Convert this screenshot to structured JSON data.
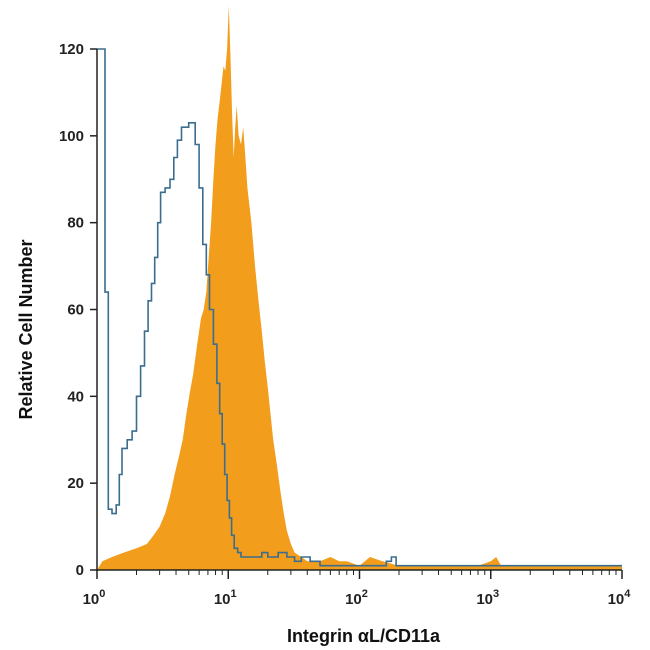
{
  "chart_data": {
    "type": "histogram",
    "xlabel": "Integrin αL/CD11a",
    "ylabel": "Relative Cell Number",
    "xscale": "log",
    "xlim": [
      1,
      10000
    ],
    "ylim": [
      0,
      120
    ],
    "x_ticks": [
      {
        "value": 1,
        "base": "10",
        "exp": "0"
      },
      {
        "value": 10,
        "base": "10",
        "exp": "1"
      },
      {
        "value": 100,
        "base": "10",
        "exp": "2"
      },
      {
        "value": 1000,
        "base": "10",
        "exp": "3"
      },
      {
        "value": 10000,
        "base": "10",
        "exp": "4"
      }
    ],
    "y_ticks": [
      0,
      20,
      40,
      60,
      80,
      100,
      120
    ],
    "grid": false,
    "series": [
      {
        "style": "outline",
        "color": "#3b6d8f",
        "points": [
          [
            1.0,
            120
          ],
          [
            1.14,
            120
          ],
          [
            1.15,
            64
          ],
          [
            1.2,
            64
          ],
          [
            1.22,
            14
          ],
          [
            1.28,
            14
          ],
          [
            1.3,
            13
          ],
          [
            1.4,
            15
          ],
          [
            1.48,
            22
          ],
          [
            1.55,
            28
          ],
          [
            1.7,
            30
          ],
          [
            1.85,
            32
          ],
          [
            2.0,
            40
          ],
          [
            2.15,
            47
          ],
          [
            2.3,
            55
          ],
          [
            2.45,
            62
          ],
          [
            2.6,
            66
          ],
          [
            2.75,
            72
          ],
          [
            2.9,
            80
          ],
          [
            3.05,
            87
          ],
          [
            3.3,
            88
          ],
          [
            3.6,
            90
          ],
          [
            3.85,
            95
          ],
          [
            4.1,
            99
          ],
          [
            4.4,
            102
          ],
          [
            4.7,
            102
          ],
          [
            5.0,
            103
          ],
          [
            5.3,
            103
          ],
          [
            5.6,
            98
          ],
          [
            6.0,
            88
          ],
          [
            6.4,
            75
          ],
          [
            6.8,
            68
          ],
          [
            7.2,
            60
          ],
          [
            7.7,
            52
          ],
          [
            8.2,
            43
          ],
          [
            8.6,
            36
          ],
          [
            9.0,
            29
          ],
          [
            9.4,
            22
          ],
          [
            9.8,
            16
          ],
          [
            10.2,
            12
          ],
          [
            10.6,
            8
          ],
          [
            11.1,
            5
          ],
          [
            11.8,
            4
          ],
          [
            12.5,
            3
          ],
          [
            14.0,
            3
          ],
          [
            16.0,
            3
          ],
          [
            18.0,
            4
          ],
          [
            20.0,
            3
          ],
          [
            24.0,
            4
          ],
          [
            28.0,
            3
          ],
          [
            32.0,
            2
          ],
          [
            36.0,
            3
          ],
          [
            42.0,
            2
          ],
          [
            50.0,
            1
          ],
          [
            60.0,
            1
          ],
          [
            80.0,
            1
          ],
          [
            100.0,
            1
          ],
          [
            130.0,
            1
          ],
          [
            160.0,
            2
          ],
          [
            175.0,
            3
          ],
          [
            190.0,
            1
          ],
          [
            250.0,
            1
          ],
          [
            500.0,
            1
          ],
          [
            1000.0,
            1
          ],
          [
            3000.0,
            1
          ],
          [
            10000.0,
            1
          ]
        ]
      },
      {
        "style": "filled",
        "color": "#f29d1b",
        "points": [
          [
            1.0,
            0
          ],
          [
            1.1,
            2
          ],
          [
            1.3,
            3
          ],
          [
            1.6,
            4
          ],
          [
            2.0,
            5
          ],
          [
            2.4,
            6
          ],
          [
            2.7,
            8
          ],
          [
            3.0,
            10
          ],
          [
            3.3,
            13
          ],
          [
            3.6,
            17
          ],
          [
            3.9,
            22
          ],
          [
            4.2,
            26
          ],
          [
            4.5,
            30
          ],
          [
            4.8,
            36
          ],
          [
            5.1,
            41
          ],
          [
            5.4,
            45
          ],
          [
            5.8,
            52
          ],
          [
            6.2,
            58
          ],
          [
            6.5,
            60
          ],
          [
            6.8,
            64
          ],
          [
            7.1,
            72
          ],
          [
            7.4,
            80
          ],
          [
            7.7,
            90
          ],
          [
            8.0,
            98
          ],
          [
            8.3,
            104
          ],
          [
            8.6,
            108
          ],
          [
            8.9,
            112
          ],
          [
            9.2,
            116
          ],
          [
            9.5,
            115
          ],
          [
            9.8,
            120
          ],
          [
            10.1,
            130
          ],
          [
            10.4,
            118
          ],
          [
            10.7,
            105
          ],
          [
            11.0,
            95
          ],
          [
            11.3,
            102
          ],
          [
            11.6,
            107
          ],
          [
            12.0,
            100
          ],
          [
            12.5,
            98
          ],
          [
            13.0,
            102
          ],
          [
            13.5,
            95
          ],
          [
            14.0,
            88
          ],
          [
            15.0,
            80
          ],
          [
            16.0,
            70
          ],
          [
            17.0,
            62
          ],
          [
            18.0,
            55
          ],
          [
            19.0,
            48
          ],
          [
            20.0,
            42
          ],
          [
            21.0,
            36
          ],
          [
            22.0,
            30
          ],
          [
            23.5,
            24
          ],
          [
            25.0,
            18
          ],
          [
            26.5,
            13
          ],
          [
            28.0,
            9
          ],
          [
            30.0,
            6
          ],
          [
            32.0,
            4
          ],
          [
            36.0,
            3
          ],
          [
            40.0,
            2
          ],
          [
            50.0,
            2
          ],
          [
            60.0,
            3
          ],
          [
            70.0,
            2
          ],
          [
            80.0,
            2
          ],
          [
            100.0,
            1
          ],
          [
            120.0,
            3
          ],
          [
            150.0,
            2
          ],
          [
            200.0,
            1
          ],
          [
            400.0,
            1
          ],
          [
            800.0,
            1
          ],
          [
            1000.0,
            2
          ],
          [
            1100.0,
            3
          ],
          [
            1200.0,
            1
          ],
          [
            3000.0,
            1
          ],
          [
            10000.0,
            1
          ]
        ]
      }
    ]
  }
}
